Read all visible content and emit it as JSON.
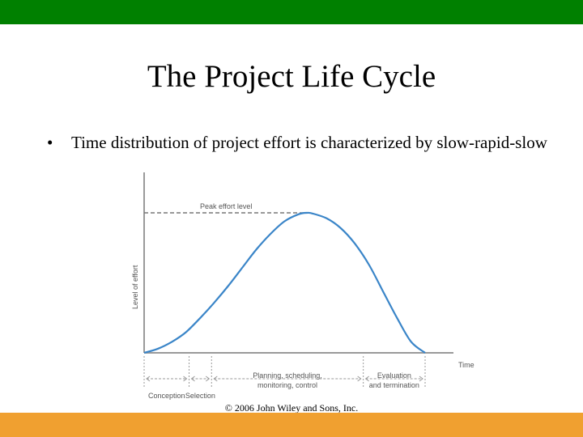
{
  "colors": {
    "top_bar": "#008000",
    "bottom_bar": "#f0a030",
    "curve": "#3a85c8",
    "axis": "#9a9a9a",
    "peak_line": "#777777"
  },
  "slide": {
    "title": "The Project Life Cycle",
    "bullet": "•",
    "bullet_text": "Time distribution of project effort is characterized by slow-rapid-slow",
    "footer": "© 2006 John Wiley and Sons, Inc."
  },
  "chart_data": {
    "type": "line",
    "title": "",
    "xlabel": "Time",
    "ylabel": "Level of effort",
    "xlim": [
      0,
      100
    ],
    "ylim": [
      0,
      100
    ],
    "peak_label": "Peak effort level",
    "peak_value": 100,
    "grid": false,
    "legend": "none",
    "series": [
      {
        "x": [
          0,
          5,
          10,
          15,
          20,
          25,
          30,
          35,
          40,
          45,
          50,
          55,
          58,
          60,
          65,
          70,
          75,
          80,
          85,
          90,
          95,
          100
        ],
        "values": [
          0,
          3,
          8,
          15,
          25,
          36,
          48,
          61,
          74,
          85,
          94,
          99,
          100,
          99.5,
          96,
          89,
          78,
          63,
          44,
          25,
          8,
          0
        ]
      }
    ],
    "phases": [
      {
        "label": "Conception",
        "x_start": 0,
        "x_end": 16
      },
      {
        "label": "Selection",
        "x_start": 16,
        "x_end": 24
      },
      {
        "label_lines": [
          "Planning, scheduling,",
          "monitoring, control"
        ],
        "x_start": 24,
        "x_end": 78
      },
      {
        "label_lines": [
          "Evaluation",
          "and termination"
        ],
        "x_start": 78,
        "x_end": 100
      }
    ]
  }
}
